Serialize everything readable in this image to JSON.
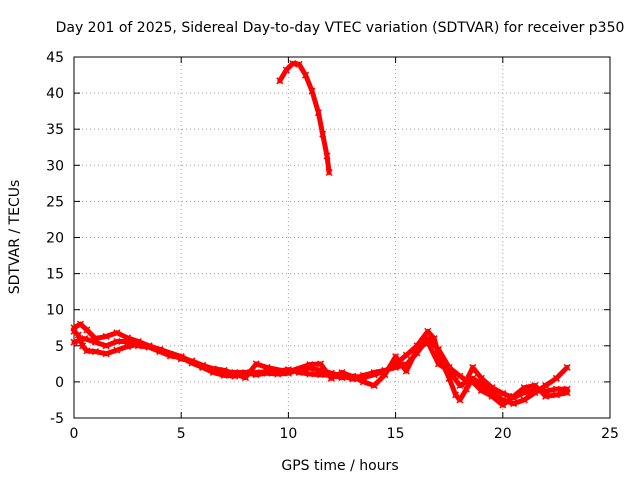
{
  "chart_data": {
    "type": "line",
    "title": "Day 201 of 2025, Sidereal Day-to-day VTEC variation (SDTVAR) for receiver p350",
    "xlabel": "GPS time / hours",
    "ylabel": "SDTVAR / TECUs",
    "xlim": [
      0,
      25
    ],
    "ylim": [
      -5,
      45
    ],
    "xticks": [
      0,
      5,
      10,
      15,
      20,
      25
    ],
    "yticks": [
      -5,
      0,
      5,
      10,
      15,
      20,
      25,
      30,
      35,
      40,
      45
    ],
    "grid": true,
    "color": "#ff0000",
    "series": [
      {
        "name": "SDTVAR",
        "points": [
          [
            0.0,
            7.0
          ],
          [
            0.2,
            6.5
          ],
          [
            0.4,
            5.0
          ],
          [
            0.6,
            4.3
          ],
          [
            1.0,
            4.2
          ],
          [
            1.5,
            3.9
          ],
          [
            2.0,
            4.4
          ],
          [
            2.5,
            4.9
          ],
          [
            3.0,
            5.2
          ],
          [
            3.5,
            4.9
          ],
          [
            4.0,
            4.4
          ],
          [
            4.5,
            3.8
          ],
          [
            5.0,
            3.2
          ],
          [
            5.5,
            2.9
          ],
          [
            6.0,
            2.3
          ],
          [
            6.5,
            1.8
          ],
          [
            7.0,
            1.4
          ],
          [
            7.5,
            1.3
          ],
          [
            8.0,
            1.3
          ],
          [
            8.5,
            1.3
          ],
          [
            9.0,
            1.4
          ],
          [
            9.5,
            1.5
          ],
          [
            10.0,
            1.7
          ],
          [
            10.5,
            1.3
          ],
          [
            11.0,
            1.1
          ],
          [
            11.5,
            1.0
          ],
          [
            12.0,
            0.9
          ],
          [
            12.5,
            0.6
          ],
          [
            13.0,
            0.8
          ],
          [
            13.5,
            0.6
          ],
          [
            14.0,
            1.0
          ],
          [
            14.5,
            1.5
          ],
          [
            15.0,
            2.5
          ],
          [
            15.5,
            3.7
          ],
          [
            16.0,
            5.0
          ],
          [
            16.5,
            7.0
          ],
          [
            16.8,
            6.0
          ],
          [
            17.0,
            3.8
          ],
          [
            17.5,
            0.5
          ],
          [
            17.8,
            -1.8
          ],
          [
            18.0,
            -2.5
          ],
          [
            18.3,
            -1.0
          ],
          [
            18.6,
            0.5
          ],
          [
            19.0,
            -0.3
          ],
          [
            19.5,
            -1.5
          ],
          [
            20.0,
            -2.5
          ],
          [
            20.5,
            -3.0
          ],
          [
            21.0,
            -2.5
          ],
          [
            21.5,
            -1.5
          ],
          [
            22.0,
            -0.5
          ],
          [
            22.5,
            0.5
          ],
          [
            23.0,
            2.0
          ]
        ]
      },
      {
        "name": "SDTVAR",
        "points": [
          [
            0.0,
            5.5
          ],
          [
            0.5,
            6.0
          ],
          [
            1.0,
            5.5
          ],
          [
            1.5,
            5.0
          ],
          [
            2.0,
            5.6
          ],
          [
            2.5,
            5.6
          ],
          [
            3.0,
            5.0
          ],
          [
            3.5,
            4.8
          ],
          [
            4.0,
            4.2
          ],
          [
            4.5,
            3.6
          ],
          [
            5.0,
            3.4
          ],
          [
            5.5,
            2.6
          ],
          [
            6.0,
            2.0
          ],
          [
            6.5,
            1.3
          ],
          [
            7.0,
            0.9
          ],
          [
            7.5,
            0.8
          ],
          [
            8.0,
            1.2
          ],
          [
            8.5,
            1.0
          ],
          [
            9.0,
            1.2
          ],
          [
            9.5,
            1.1
          ],
          [
            10.0,
            1.2
          ],
          [
            10.5,
            1.7
          ],
          [
            11.0,
            1.9
          ],
          [
            11.5,
            1.6
          ],
          [
            12.0,
            1.2
          ],
          [
            12.5,
            0.8
          ],
          [
            13.0,
            0.4
          ],
          [
            13.5,
            0.9
          ],
          [
            14.0,
            1.3
          ],
          [
            14.5,
            1.6
          ],
          [
            15.0,
            2.0
          ],
          [
            15.5,
            2.4
          ],
          [
            16.0,
            4.0
          ],
          [
            16.5,
            6.0
          ],
          [
            17.0,
            4.5
          ],
          [
            17.5,
            2.0
          ],
          [
            18.0,
            0.8
          ],
          [
            18.3,
            0.2
          ],
          [
            18.6,
            2.0
          ],
          [
            19.0,
            0.5
          ],
          [
            19.5,
            -0.8
          ],
          [
            20.0,
            -1.6
          ],
          [
            20.5,
            -2.2
          ],
          [
            21.0,
            -1.5
          ],
          [
            21.5,
            -1.2
          ],
          [
            22.0,
            -1.3
          ],
          [
            22.5,
            -1.0
          ],
          [
            23.0,
            -1.0
          ]
        ]
      },
      {
        "name": "SDTVAR",
        "points": [
          [
            0.0,
            7.5
          ],
          [
            0.3,
            8.0
          ],
          [
            0.6,
            7.2
          ],
          [
            1.0,
            6.0
          ],
          [
            1.5,
            6.3
          ],
          [
            2.0,
            6.8
          ],
          [
            2.5,
            6.1
          ],
          [
            3.0,
            5.6
          ],
          [
            3.5,
            5.0
          ],
          [
            4.0,
            4.5
          ],
          [
            5.0,
            3.5
          ],
          [
            6.0,
            2.1
          ],
          [
            7.0,
            1.6
          ],
          [
            8.0,
            0.6
          ],
          [
            8.5,
            2.5
          ],
          [
            9.0,
            2.0
          ],
          [
            10.0,
            1.4
          ],
          [
            11.0,
            2.4
          ],
          [
            11.5,
            2.5
          ],
          [
            12.0,
            0.5
          ],
          [
            12.5,
            1.3
          ],
          [
            13.0,
            0.7
          ],
          [
            13.5,
            0.0
          ],
          [
            14.0,
            -0.5
          ],
          [
            14.5,
            1.0
          ],
          [
            15.0,
            3.5
          ],
          [
            15.5,
            1.5
          ],
          [
            16.0,
            4.5
          ],
          [
            16.5,
            5.5
          ],
          [
            17.0,
            2.5
          ],
          [
            17.5,
            1.5
          ],
          [
            18.0,
            -0.5
          ],
          [
            18.5,
            0.3
          ],
          [
            19.0,
            -1.2
          ],
          [
            19.5,
            -2.0
          ],
          [
            20.0,
            -3.2
          ],
          [
            20.5,
            -2.0
          ],
          [
            21.0,
            -0.8
          ],
          [
            21.5,
            -0.5
          ],
          [
            22.0,
            -2.0
          ],
          [
            22.5,
            -1.8
          ],
          [
            23.0,
            -1.5
          ]
        ]
      },
      {
        "name": "SDTVAR",
        "points": [
          [
            9.6,
            41.7
          ],
          [
            9.9,
            43.2
          ],
          [
            10.2,
            44.1
          ],
          [
            10.5,
            44.0
          ],
          [
            10.8,
            42.5
          ],
          [
            11.1,
            40.3
          ],
          [
            11.4,
            37.3
          ],
          [
            11.6,
            34.3
          ],
          [
            11.8,
            31.3
          ],
          [
            11.9,
            29.0
          ]
        ]
      }
    ]
  }
}
